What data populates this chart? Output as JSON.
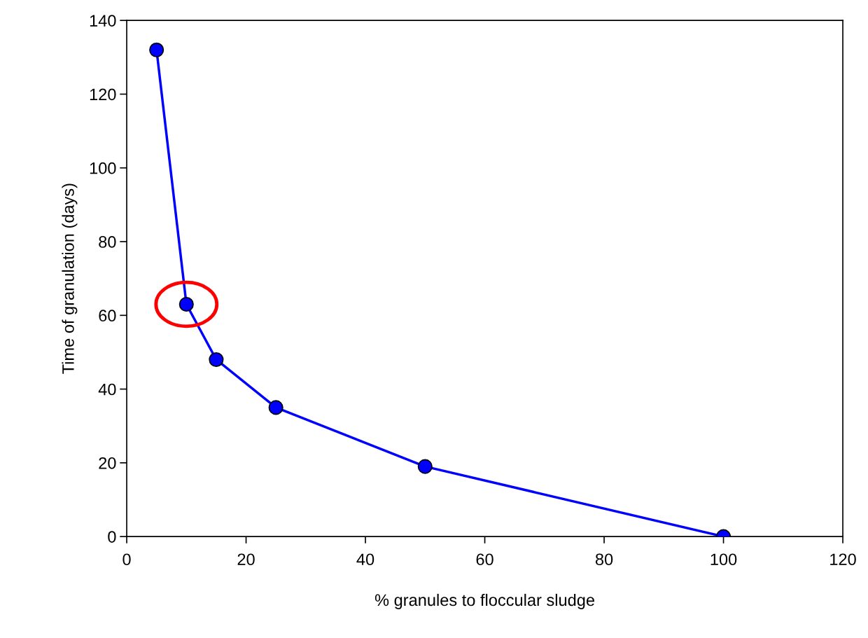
{
  "chart_data": {
    "type": "line",
    "xlabel": "% granules to floccular sludge",
    "ylabel": "Time of granulation (days)",
    "x": [
      5,
      10,
      15,
      25,
      50,
      100
    ],
    "series": [
      {
        "color": "#0000ff",
        "values": [
          132,
          63,
          48,
          35,
          19,
          0
        ]
      }
    ],
    "marker": "circle",
    "line_style": "solid",
    "grid": false,
    "legend": false,
    "xlim": [
      0,
      120
    ],
    "xticks": [
      0,
      20,
      40,
      60,
      80,
      100,
      120
    ],
    "ylim": [
      0,
      140
    ],
    "yticks": [
      0,
      20,
      40,
      60,
      80,
      100,
      120,
      140
    ]
  }
}
